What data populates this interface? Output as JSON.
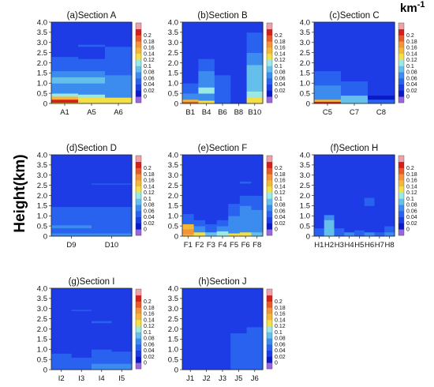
{
  "figure": {
    "ylabel": "Height(km)",
    "unit_base": "km",
    "unit_exp": "-1"
  },
  "chart_data": {
    "type": "heatmap",
    "ylim": [
      0,
      4.0
    ],
    "yticks": [
      "4.0",
      "3.5",
      "3.0",
      "2.5",
      "2.0",
      "1.5",
      "1.0",
      "0.5",
      "0"
    ],
    "colorbar": {
      "ticks": [
        "0.2",
        "0.18",
        "0.16",
        "0.14",
        "0.12",
        "0.1",
        "0.08",
        "0.06",
        "0.04",
        "0.02",
        "0"
      ],
      "colors": [
        "#9966dd",
        "#0a1ac8",
        "#1e3ce6",
        "#2a62f0",
        "#3c8cf0",
        "#64c0ea",
        "#9be8e4",
        "#f2e04a",
        "#f4b838",
        "#f2953a",
        "#e85a28",
        "#d42018",
        "#f0a0a8"
      ]
    },
    "panels": [
      {
        "title": "(a)Section A",
        "stations": [
          "A1",
          "A5",
          "A6"
        ],
        "columns": [
          [
            [
              0,
              0.05,
              0.12
            ],
            [
              0.05,
              0.2,
              0.2
            ],
            [
              0.2,
              0.35,
              0.15
            ],
            [
              0.35,
              0.5,
              0.1
            ],
            [
              0.5,
              1.0,
              0.07
            ],
            [
              1.0,
              1.3,
              0.08
            ],
            [
              1.3,
              1.6,
              0.06
            ],
            [
              1.6,
              1.9,
              0.045
            ],
            [
              1.9,
              2.3,
              0.04
            ],
            [
              2.3,
              2.6,
              0.032
            ],
            [
              2.6,
              4.0,
              0.025
            ]
          ],
          [
            [
              0,
              0.3,
              0.12
            ],
            [
              0.3,
              0.45,
              0.11
            ],
            [
              0.45,
              1.0,
              0.07
            ],
            [
              1.0,
              1.3,
              0.08
            ],
            [
              1.3,
              1.6,
              0.06
            ],
            [
              1.6,
              1.9,
              0.05
            ],
            [
              1.9,
              2.2,
              0.045
            ],
            [
              2.2,
              2.8,
              0.035
            ],
            [
              2.8,
              2.9,
              0.05
            ],
            [
              2.9,
              4.0,
              0.025
            ]
          ],
          [
            [
              0,
              0.3,
              0.13
            ],
            [
              0.3,
              1.4,
              0.07
            ],
            [
              1.4,
              1.8,
              0.05
            ],
            [
              1.8,
              2.25,
              0.045
            ],
            [
              2.25,
              2.8,
              0.04
            ],
            [
              2.8,
              4.0,
              0.025
            ]
          ]
        ]
      },
      {
        "title": "(b)Section B",
        "stations": [
          "B1",
          "B4",
          "B6",
          "B8",
          "B10"
        ],
        "columns": [
          [
            [
              0,
              0.1,
              0.18
            ],
            [
              0.1,
              0.2,
              0.14
            ],
            [
              0.2,
              0.5,
              0.06
            ],
            [
              0.5,
              1.0,
              0.045
            ],
            [
              1.0,
              4.0,
              0.025
            ]
          ],
          [
            [
              0,
              0.15,
              0.12
            ],
            [
              0.15,
              0.5,
              0.07
            ],
            [
              0.5,
              0.8,
              0.1
            ],
            [
              0.8,
              1.3,
              0.07
            ],
            [
              1.3,
              1.6,
              0.06
            ],
            [
              1.6,
              2.2,
              0.045
            ],
            [
              2.2,
              4.0,
              0.025
            ]
          ],
          [
            [
              0,
              0.2,
              0.045
            ],
            [
              0.2,
              1.4,
              0.04
            ],
            [
              1.4,
              1.7,
              0.035
            ],
            [
              1.7,
              4.0,
              0.025
            ]
          ],
          [
            [
              0,
              0.5,
              0.03
            ],
            [
              0.5,
              1.9,
              0.035
            ],
            [
              1.9,
              4.0,
              0.025
            ]
          ],
          [
            [
              0,
              0.3,
              0.13
            ],
            [
              0.3,
              0.6,
              0.11
            ],
            [
              0.6,
              1.9,
              0.08
            ],
            [
              1.9,
              2.5,
              0.06
            ],
            [
              2.5,
              3.1,
              0.045
            ],
            [
              3.1,
              3.5,
              0.04
            ],
            [
              3.5,
              4.0,
              0.025
            ]
          ]
        ]
      },
      {
        "title": "(c)Section C",
        "stations": [
          "C5",
          "C7",
          "C8"
        ],
        "columns": [
          [
            [
              0,
              0.1,
              0.2
            ],
            [
              0.1,
              0.2,
              0.15
            ],
            [
              0.2,
              0.6,
              0.07
            ],
            [
              0.6,
              0.9,
              0.06
            ],
            [
              0.9,
              1.2,
              0.05
            ],
            [
              1.2,
              1.6,
              0.04
            ],
            [
              1.6,
              4.0,
              0.025
            ]
          ],
          [
            [
              0,
              0.4,
              0.08
            ],
            [
              0.4,
              1.1,
              0.04
            ],
            [
              1.1,
              4.0,
              0.025
            ]
          ],
          [
            [
              0,
              0.2,
              0.045
            ],
            [
              0.2,
              0.4,
              0.015
            ],
            [
              0.4,
              1.3,
              0.035
            ],
            [
              1.3,
              4.0,
              0.025
            ]
          ]
        ]
      },
      {
        "title": "(d)Section D",
        "stations": [
          "D9",
          "D10"
        ],
        "columns": [
          [
            [
              0,
              0.15,
              0.06
            ],
            [
              0.15,
              0.4,
              0.045
            ],
            [
              0.4,
              0.55,
              0.06
            ],
            [
              0.55,
              1.0,
              0.05
            ],
            [
              1.0,
              1.45,
              0.04
            ],
            [
              1.45,
              4.0,
              0.025
            ]
          ],
          [
            [
              0,
              0.15,
              0.06
            ],
            [
              0.15,
              1.0,
              0.045
            ],
            [
              1.0,
              1.45,
              0.04
            ],
            [
              1.45,
              2.55,
              0.025
            ],
            [
              2.55,
              2.6,
              0.04
            ],
            [
              2.6,
              4.0,
              0.025
            ]
          ]
        ]
      },
      {
        "title": "(e)Section F",
        "stations": [
          "F1",
          "F2",
          "F3",
          "F4",
          "F5",
          "F6",
          "F8"
        ],
        "columns": [
          [
            [
              0,
              0.1,
              0.14
            ],
            [
              0.1,
              0.35,
              0.17
            ],
            [
              0.35,
              0.6,
              0.14
            ],
            [
              0.6,
              0.8,
              0.05
            ],
            [
              0.8,
              1.1,
              0.04
            ],
            [
              1.1,
              2.1,
              0.035
            ],
            [
              2.1,
              4.0,
              0.025
            ]
          ],
          [
            [
              0,
              0.2,
              0.13
            ],
            [
              0.2,
              0.5,
              0.07
            ],
            [
              0.5,
              0.8,
              0.04
            ],
            [
              0.8,
              2.3,
              0.035
            ],
            [
              2.3,
              4.0,
              0.025
            ]
          ],
          [
            [
              0,
              0.2,
              0.08
            ],
            [
              0.2,
              0.6,
              0.045
            ],
            [
              0.6,
              1.1,
              0.035
            ],
            [
              1.1,
              4.0,
              0.025
            ]
          ],
          [
            [
              0,
              0.25,
              0.1
            ],
            [
              0.25,
              0.5,
              0.06
            ],
            [
              0.5,
              0.8,
              0.04
            ],
            [
              0.8,
              4.0,
              0.025
            ]
          ],
          [
            [
              0,
              0.15,
              0.13
            ],
            [
              0.15,
              0.5,
              0.06
            ],
            [
              0.5,
              1.0,
              0.07
            ],
            [
              1.0,
              1.6,
              0.045
            ],
            [
              1.6,
              4.0,
              0.025
            ]
          ],
          [
            [
              0,
              0.2,
              0.12
            ],
            [
              0.2,
              0.8,
              0.06
            ],
            [
              0.8,
              1.5,
              0.07
            ],
            [
              1.5,
              2.0,
              0.045
            ],
            [
              2.0,
              2.6,
              0.035
            ],
            [
              2.6,
              2.7,
              0.05
            ],
            [
              2.7,
              4.0,
              0.025
            ]
          ],
          [
            [
              0,
              0.2,
              0.08
            ],
            [
              0.2,
              0.5,
              0.06
            ],
            [
              0.5,
              1.3,
              0.07
            ],
            [
              1.3,
              2.0,
              0.045
            ],
            [
              2.0,
              2.5,
              0.035
            ],
            [
              2.5,
              4.0,
              0.025
            ]
          ]
        ]
      },
      {
        "title": "(f)Section H",
        "stations": [
          "H1",
          "H2",
          "H3",
          "H4",
          "H5",
          "H6",
          "H7",
          "H8"
        ],
        "columns": [
          [
            [
              0,
              0.4,
              0.045
            ],
            [
              0.4,
              0.8,
              0.035
            ],
            [
              0.8,
              4.0,
              0.025
            ]
          ],
          [
            [
              0,
              0.8,
              0.08
            ],
            [
              0.8,
              1.05,
              0.06
            ],
            [
              1.05,
              4.0,
              0.025
            ]
          ],
          [
            [
              0,
              0.4,
              0.045
            ],
            [
              0.4,
              1.1,
              0.035
            ],
            [
              1.1,
              4.0,
              0.025
            ]
          ],
          [
            [
              0,
              0.2,
              0.06
            ],
            [
              0.2,
              2.1,
              0.035
            ],
            [
              2.1,
              4.0,
              0.025
            ]
          ],
          [
            [
              0,
              0.3,
              0.045
            ],
            [
              0.3,
              1.9,
              0.035
            ],
            [
              1.9,
              4.0,
              0.025
            ]
          ],
          [
            [
              0,
              0.2,
              0.06
            ],
            [
              0.2,
              1.5,
              0.035
            ],
            [
              1.5,
              1.9,
              0.04
            ],
            [
              1.9,
              4.0,
              0.025
            ]
          ],
          [
            [
              0,
              0.2,
              0.045
            ],
            [
              0.2,
              1.7,
              0.035
            ],
            [
              1.7,
              4.0,
              0.025
            ]
          ],
          [
            [
              0,
              0.2,
              0.06
            ],
            [
              0.2,
              0.5,
              0.045
            ],
            [
              0.5,
              2.0,
              0.035
            ],
            [
              2.0,
              4.0,
              0.025
            ]
          ]
        ]
      },
      {
        "title": "(g)Section I",
        "stations": [
          "I2",
          "I3",
          "I4",
          "I5"
        ],
        "columns": [
          [
            [
              0,
              0.2,
              0.045
            ],
            [
              0.2,
              0.8,
              0.04
            ],
            [
              0.8,
              4.0,
              0.025
            ]
          ],
          [
            [
              0,
              0.2,
              0.045
            ],
            [
              0.2,
              0.6,
              0.04
            ],
            [
              0.6,
              2.9,
              0.025
            ],
            [
              2.9,
              2.95,
              0.04
            ],
            [
              2.95,
              4.0,
              0.025
            ]
          ],
          [
            [
              0,
              0.3,
              0.06
            ],
            [
              0.3,
              1.0,
              0.045
            ],
            [
              1.0,
              2.3,
              0.025
            ],
            [
              2.3,
              2.4,
              0.05
            ],
            [
              2.4,
              4.0,
              0.025
            ]
          ],
          [
            [
              0,
              0.3,
              0.07
            ],
            [
              0.3,
              0.9,
              0.045
            ],
            [
              0.9,
              4.0,
              0.025
            ]
          ]
        ]
      },
      {
        "title": "(h)Section J",
        "stations": [
          "J1",
          "J2",
          "J3",
          "J5",
          "J6"
        ],
        "columns": [
          [
            [
              0,
              0.1,
              0.035
            ],
            [
              0.1,
              4.0,
              0.025
            ]
          ],
          [
            [
              0,
              0.25,
              0.035
            ],
            [
              0.25,
              4.0,
              0.025
            ]
          ],
          [
            [
              0,
              0.45,
              0.035
            ],
            [
              0.45,
              4.0,
              0.025
            ]
          ],
          [
            [
              0,
              1.8,
              0.04
            ],
            [
              1.8,
              4.0,
              0.025
            ]
          ],
          [
            [
              0,
              2.1,
              0.04
            ],
            [
              2.1,
              2.3,
              0.035
            ],
            [
              2.3,
              4.0,
              0.025
            ]
          ]
        ]
      }
    ]
  }
}
